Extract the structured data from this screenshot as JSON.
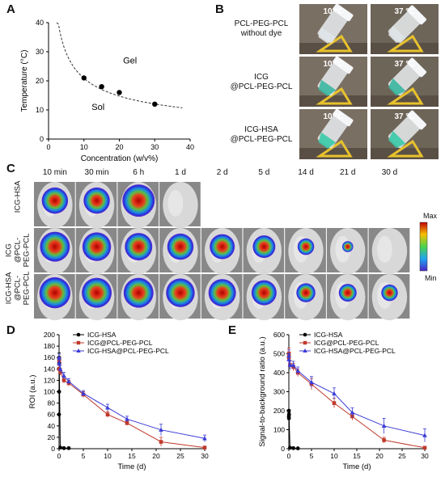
{
  "panels": {
    "a": "A",
    "b": "B",
    "c": "C",
    "d": "D",
    "e": "E"
  },
  "panel_b": {
    "temps": [
      "10 °C",
      "37 °C"
    ],
    "rows": [
      {
        "line1": "PCL-PEG-PCL",
        "line2": "without dye"
      },
      {
        "line1": "ICG",
        "line2": "@PCL-PEG-PCL"
      },
      {
        "line1": "ICG-HSA",
        "line2": "@PCL-PEG-PCL"
      }
    ]
  },
  "panel_c": {
    "times": [
      "10 min",
      "30 min",
      "6 h",
      "1 d",
      "2 d",
      "5 d",
      "14 d",
      "21 d",
      "30 d"
    ],
    "rows": [
      {
        "label": "ICG-HSA",
        "frames": 4,
        "intensity": [
          0.75,
          0.75,
          1.0,
          0
        ]
      },
      {
        "label": "ICG\n@PCL-\nPEG-PCL",
        "frames": 9,
        "intensity": [
          0.9,
          0.85,
          0.8,
          0.75,
          0.7,
          0.6,
          0.35,
          0.12,
          0
        ]
      },
      {
        "label": "ICG-HSA\n@PCL-\nPEG-PCL",
        "frames": 9,
        "intensity": [
          0.95,
          0.9,
          0.9,
          0.85,
          0.8,
          0.7,
          0.45,
          0.4,
          0.35
        ]
      }
    ],
    "scale_max": "Max",
    "scale_min": "Min"
  },
  "chart_data": [
    {
      "type": "scatter",
      "xlabel": "Concentration (w/v%)",
      "ylabel": "Temperature (°C)",
      "xlim": [
        0,
        40
      ],
      "ylim": [
        0,
        40
      ],
      "xticks": [
        0,
        10,
        20,
        30,
        40
      ],
      "yticks": [
        0,
        10,
        20,
        30,
        40
      ],
      "points": {
        "x": [
          10,
          15,
          20,
          30
        ],
        "y": [
          21,
          18,
          16,
          12
        ]
      },
      "curve_label": "dashed fit",
      "region_labels": {
        "upper": "Gel",
        "lower": "Sol"
      }
    },
    {
      "type": "line",
      "xlabel": "Time (d)",
      "ylabel": "ROI (a.u.)",
      "xlim": [
        0,
        30
      ],
      "ylim": [
        0,
        200
      ],
      "xticks": [
        0,
        5,
        10,
        15,
        20,
        25,
        30
      ],
      "yticks": [
        0,
        20,
        40,
        60,
        80,
        100,
        120,
        140,
        160,
        180,
        200
      ],
      "series": [
        {
          "name": "ICG-HSA",
          "color": "#000000",
          "marker": "circle",
          "x": [
            0,
            0.01,
            0.02,
            0.04,
            0.25,
            1,
            2
          ],
          "y": [
            60,
            100,
            160,
            150,
            2,
            1,
            1
          ],
          "err": [
            0,
            0,
            8,
            8,
            0,
            0,
            0
          ]
        },
        {
          "name": "ICG@PCL-PEG-PCL",
          "color": "#c0392b",
          "marker": "square",
          "x": [
            0,
            0.02,
            0.25,
            1,
            2,
            5,
            10,
            14,
            21,
            30
          ],
          "y": [
            140,
            155,
            135,
            120,
            115,
            95,
            60,
            45,
            12,
            2
          ],
          "err": [
            6,
            6,
            6,
            5,
            5,
            5,
            5,
            4,
            8,
            2
          ]
        },
        {
          "name": "ICG-HSA@PCL-PEG-PCL",
          "color": "#3b3bd6",
          "marker": "triangle",
          "x": [
            0,
            0.02,
            0.25,
            1,
            2,
            5,
            10,
            14,
            21,
            30
          ],
          "y": [
            150,
            160,
            140,
            128,
            118,
            97,
            72,
            52,
            33,
            18
          ],
          "err": [
            6,
            6,
            6,
            6,
            5,
            5,
            6,
            5,
            10,
            6
          ]
        }
      ]
    },
    {
      "type": "line",
      "xlabel": "Time (d)",
      "ylabel": "Signal-to-background ratio (a.u.)",
      "xlim": [
        0,
        30
      ],
      "ylim": [
        0,
        600
      ],
      "xticks": [
        0,
        5,
        10,
        15,
        20,
        25,
        30
      ],
      "yticks": [
        0,
        100,
        200,
        300,
        400,
        500,
        600
      ],
      "series": [
        {
          "name": "ICG-HSA",
          "color": "#000000",
          "marker": "circle",
          "x": [
            0,
            0.01,
            0.02,
            0.04,
            0.25,
            1,
            2
          ],
          "y": [
            170,
            200,
            160,
            180,
            5,
            3,
            2
          ],
          "err": [
            0,
            0,
            10,
            10,
            0,
            0,
            0
          ]
        },
        {
          "name": "ICG@PCL-PEG-PCL",
          "color": "#c0392b",
          "marker": "square",
          "x": [
            0,
            0.02,
            0.25,
            1,
            2,
            5,
            10,
            14,
            21,
            30
          ],
          "y": [
            480,
            500,
            440,
            430,
            400,
            340,
            240,
            170,
            45,
            5
          ],
          "err": [
            30,
            30,
            20,
            20,
            20,
            30,
            25,
            20,
            15,
            5
          ]
        },
        {
          "name": "ICG-HSA@PCL-PEG-PCL",
          "color": "#3b3bd6",
          "marker": "triangle",
          "x": [
            0,
            0.02,
            0.25,
            1,
            2,
            5,
            10,
            14,
            21,
            30
          ],
          "y": [
            470,
            490,
            440,
            440,
            410,
            350,
            290,
            190,
            120,
            70
          ],
          "err": [
            30,
            30,
            25,
            20,
            20,
            30,
            30,
            25,
            40,
            35
          ]
        }
      ]
    }
  ]
}
